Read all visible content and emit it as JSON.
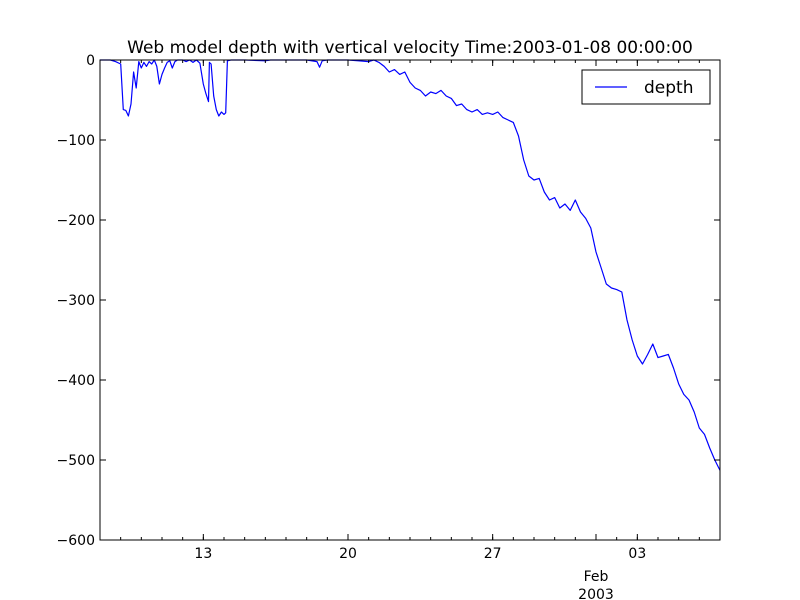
{
  "chart_data": {
    "type": "line",
    "title": "Web model depth with vertical velocity Time:2003-01-08 00:00:00",
    "xlabel": "",
    "ylabel": "",
    "x_axis": {
      "type": "date",
      "range": [
        "2003-01-08",
        "2003-02-07"
      ],
      "major_ticks": [
        {
          "date": "2003-01-13",
          "label": "13"
        },
        {
          "date": "2003-01-20",
          "label": "20"
        },
        {
          "date": "2003-01-27",
          "label": "27"
        },
        {
          "date": "2003-02-01",
          "label": "Feb",
          "sublabel": "2003"
        },
        {
          "date": "2003-02-03",
          "label": "03"
        }
      ]
    },
    "y_axis": {
      "range": [
        -600,
        0
      ],
      "ticks": [
        {
          "value": 0,
          "label": "0"
        },
        {
          "value": -100,
          "label": "−100"
        },
        {
          "value": -200,
          "label": "−200"
        },
        {
          "value": -300,
          "label": "−300"
        },
        {
          "value": -400,
          "label": "−400"
        },
        {
          "value": -500,
          "label": "−500"
        },
        {
          "value": -600,
          "label": "−600"
        }
      ]
    },
    "grid": false,
    "legend": {
      "position": "top-right",
      "entries": [
        "depth"
      ]
    },
    "series": [
      {
        "name": "depth",
        "color": "#0000ff",
        "points": [
          [
            "2003-01-08 00:00",
            0
          ],
          [
            "2003-01-08 12:00",
            0
          ],
          [
            "2003-01-08 18:00",
            -2
          ],
          [
            "2003-01-09 00:00",
            -5
          ],
          [
            "2003-01-09 03:00",
            -62
          ],
          [
            "2003-01-09 06:00",
            -63
          ],
          [
            "2003-01-09 09:00",
            -70
          ],
          [
            "2003-01-09 12:00",
            -55
          ],
          [
            "2003-01-09 15:00",
            -15
          ],
          [
            "2003-01-09 18:00",
            -35
          ],
          [
            "2003-01-09 21:00",
            -2
          ],
          [
            "2003-01-10 00:00",
            -10
          ],
          [
            "2003-01-10 03:00",
            -3
          ],
          [
            "2003-01-10 06:00",
            -8
          ],
          [
            "2003-01-10 09:00",
            -2
          ],
          [
            "2003-01-10 12:00",
            -5
          ],
          [
            "2003-01-10 15:00",
            0
          ],
          [
            "2003-01-10 18:00",
            -8
          ],
          [
            "2003-01-10 21:00",
            -30
          ],
          [
            "2003-01-11 00:00",
            -18
          ],
          [
            "2003-01-11 03:00",
            -10
          ],
          [
            "2003-01-11 06:00",
            -3
          ],
          [
            "2003-01-11 09:00",
            -1
          ],
          [
            "2003-01-11 12:00",
            -10
          ],
          [
            "2003-01-11 15:00",
            -2
          ],
          [
            "2003-01-11 18:00",
            0
          ],
          [
            "2003-01-12 00:00",
            0
          ],
          [
            "2003-01-12 04:00",
            -2
          ],
          [
            "2003-01-12 08:00",
            0
          ],
          [
            "2003-01-12 12:00",
            -3
          ],
          [
            "2003-01-12 16:00",
            0
          ],
          [
            "2003-01-12 20:00",
            -4
          ],
          [
            "2003-01-13 00:00",
            -30
          ],
          [
            "2003-01-13 03:00",
            -42
          ],
          [
            "2003-01-13 06:00",
            -52
          ],
          [
            "2003-01-13 07:00",
            -3
          ],
          [
            "2003-01-13 09:00",
            -5
          ],
          [
            "2003-01-13 12:00",
            -45
          ],
          [
            "2003-01-13 15:00",
            -62
          ],
          [
            "2003-01-13 18:00",
            -70
          ],
          [
            "2003-01-13 21:00",
            -65
          ],
          [
            "2003-01-14 00:00",
            -68
          ],
          [
            "2003-01-14 02:00",
            -66
          ],
          [
            "2003-01-14 04:00",
            -1
          ],
          [
            "2003-01-14 08:00",
            0
          ],
          [
            "2003-01-15 00:00",
            0
          ],
          [
            "2003-01-16 00:00",
            -1
          ],
          [
            "2003-01-16 06:00",
            0
          ],
          [
            "2003-01-17 00:00",
            0
          ],
          [
            "2003-01-18 00:00",
            0
          ],
          [
            "2003-01-18 12:00",
            -2
          ],
          [
            "2003-01-18 15:00",
            -9
          ],
          [
            "2003-01-18 18:00",
            -1
          ],
          [
            "2003-01-19 00:00",
            0
          ],
          [
            "2003-01-20 00:00",
            0
          ],
          [
            "2003-01-20 12:00",
            -1
          ],
          [
            "2003-01-21 00:00",
            -2
          ],
          [
            "2003-01-21 06:00",
            0
          ],
          [
            "2003-01-21 12:00",
            -3
          ],
          [
            "2003-01-21 18:00",
            -8
          ],
          [
            "2003-01-22 00:00",
            -15
          ],
          [
            "2003-01-22 06:00",
            -12
          ],
          [
            "2003-01-22 12:00",
            -18
          ],
          [
            "2003-01-22 18:00",
            -15
          ],
          [
            "2003-01-23 00:00",
            -28
          ],
          [
            "2003-01-23 06:00",
            -35
          ],
          [
            "2003-01-23 12:00",
            -38
          ],
          [
            "2003-01-23 18:00",
            -45
          ],
          [
            "2003-01-24 00:00",
            -40
          ],
          [
            "2003-01-24 06:00",
            -42
          ],
          [
            "2003-01-24 12:00",
            -38
          ],
          [
            "2003-01-24 18:00",
            -45
          ],
          [
            "2003-01-25 00:00",
            -48
          ],
          [
            "2003-01-25 06:00",
            -57
          ],
          [
            "2003-01-25 12:00",
            -55
          ],
          [
            "2003-01-25 18:00",
            -62
          ],
          [
            "2003-01-26 00:00",
            -65
          ],
          [
            "2003-01-26 06:00",
            -62
          ],
          [
            "2003-01-26 12:00",
            -68
          ],
          [
            "2003-01-26 18:00",
            -66
          ],
          [
            "2003-01-27 00:00",
            -68
          ],
          [
            "2003-01-27 06:00",
            -65
          ],
          [
            "2003-01-27 12:00",
            -72
          ],
          [
            "2003-01-27 18:00",
            -75
          ],
          [
            "2003-01-28 00:00",
            -78
          ],
          [
            "2003-01-28 06:00",
            -95
          ],
          [
            "2003-01-28 12:00",
            -125
          ],
          [
            "2003-01-28 18:00",
            -145
          ],
          [
            "2003-01-29 00:00",
            -150
          ],
          [
            "2003-01-29 06:00",
            -148
          ],
          [
            "2003-01-29 12:00",
            -165
          ],
          [
            "2003-01-29 18:00",
            -175
          ],
          [
            "2003-01-30 00:00",
            -172
          ],
          [
            "2003-01-30 06:00",
            -185
          ],
          [
            "2003-01-30 12:00",
            -180
          ],
          [
            "2003-01-30 18:00",
            -188
          ],
          [
            "2003-01-31 00:00",
            -175
          ],
          [
            "2003-01-31 06:00",
            -190
          ],
          [
            "2003-01-31 12:00",
            -198
          ],
          [
            "2003-01-31 18:00",
            -210
          ],
          [
            "2003-02-01 00:00",
            -240
          ],
          [
            "2003-02-01 06:00",
            -260
          ],
          [
            "2003-02-01 12:00",
            -280
          ],
          [
            "2003-02-01 18:00",
            -285
          ],
          [
            "2003-02-02 00:00",
            -287
          ],
          [
            "2003-02-02 06:00",
            -290
          ],
          [
            "2003-02-02 12:00",
            -325
          ],
          [
            "2003-02-02 18:00",
            -350
          ],
          [
            "2003-02-03 00:00",
            -370
          ],
          [
            "2003-02-03 06:00",
            -380
          ],
          [
            "2003-02-03 12:00",
            -368
          ],
          [
            "2003-02-03 18:00",
            -355
          ],
          [
            "2003-02-04 00:00",
            -372
          ],
          [
            "2003-02-04 06:00",
            -370
          ],
          [
            "2003-02-04 12:00",
            -368
          ],
          [
            "2003-02-04 18:00",
            -385
          ],
          [
            "2003-02-05 00:00",
            -405
          ],
          [
            "2003-02-05 06:00",
            -418
          ],
          [
            "2003-02-05 12:00",
            -425
          ],
          [
            "2003-02-05 18:00",
            -440
          ],
          [
            "2003-02-06 00:00",
            -460
          ],
          [
            "2003-02-06 06:00",
            -468
          ],
          [
            "2003-02-06 12:00",
            -485
          ],
          [
            "2003-02-06 18:00",
            -500
          ],
          [
            "2003-02-07 00:00",
            -513
          ]
        ]
      }
    ]
  }
}
